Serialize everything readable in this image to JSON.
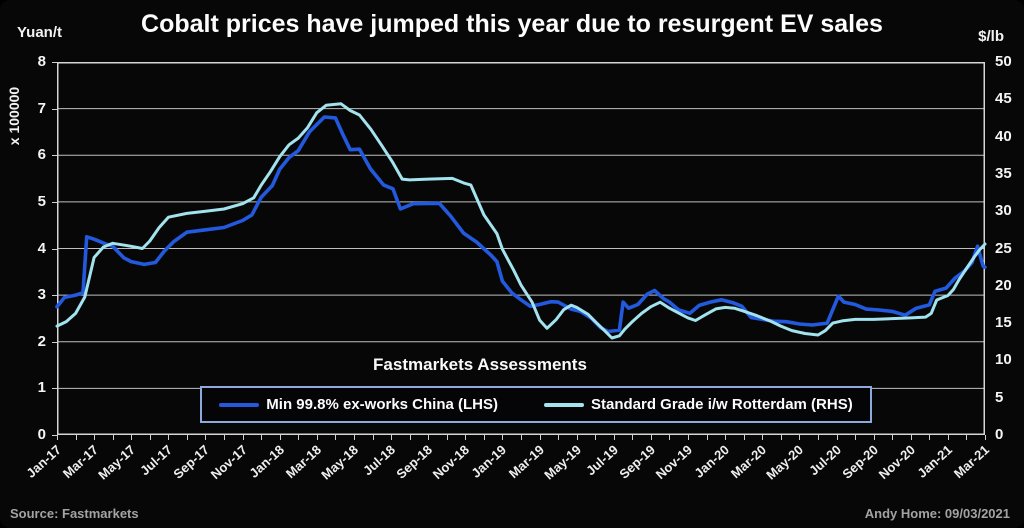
{
  "footer": {
    "source": "Source: Fastmarkets",
    "credit": "Andy Home: 09/03/2021"
  },
  "chart_data": {
    "type": "line",
    "title": "Cobalt prices have jumped this year due to resurgent EV sales",
    "annotation": "Fastmarkets Assessments",
    "grid": "horizontal",
    "grid_color": "#bfbfbf",
    "border_color": "#d6d6d6",
    "background_color": "#070707",
    "legend_position": "bottom-inside",
    "legend_border_color": "#8ea9db",
    "x_axis": {
      "months_span": 50,
      "label_every_n_months": 2,
      "tick_labels": [
        "Jan-17",
        "Mar-17",
        "May-17",
        "Jul-17",
        "Sep-17",
        "Nov-17",
        "Jan-18",
        "Mar-18",
        "May-18",
        "Jul-18",
        "Sep-18",
        "Nov-18",
        "Jan-19",
        "Mar-19",
        "May-19",
        "Jul-19",
        "Sep-19",
        "Nov-19",
        "Jan-20",
        "Mar-20",
        "May-20",
        "Jul-20",
        "Sep-20",
        "Nov-20",
        "Jan-21",
        "Mar-21"
      ]
    },
    "left_axis": {
      "unit": "Yuan/t",
      "multiplier": "x 100000",
      "min": 0,
      "max": 8,
      "step": 1,
      "tick_labels": [
        "8",
        "7",
        "6",
        "5",
        "4",
        "3",
        "2",
        "1",
        "0"
      ]
    },
    "right_axis": {
      "unit": "$/lb",
      "min": 0,
      "max": 50,
      "step": 5,
      "tick_labels": [
        "50",
        "45",
        "40",
        "35",
        "30",
        "25",
        "20",
        "15",
        "10",
        "5",
        "0"
      ]
    },
    "series": [
      {
        "name": "Min 99.8% ex-works China (LHS)",
        "axis": "left",
        "color": "#2259dd",
        "points": [
          [
            0,
            2.75
          ],
          [
            0.4,
            2.95
          ],
          [
            1,
            3.0
          ],
          [
            1.4,
            3.05
          ],
          [
            1.6,
            4.25
          ],
          [
            2,
            4.2
          ],
          [
            2.6,
            4.1
          ],
          [
            3,
            4.05
          ],
          [
            3.6,
            3.8
          ],
          [
            4,
            3.72
          ],
          [
            4.7,
            3.66
          ],
          [
            5.3,
            3.7
          ],
          [
            5.8,
            3.95
          ],
          [
            6.3,
            4.15
          ],
          [
            7,
            4.35
          ],
          [
            8,
            4.4
          ],
          [
            9,
            4.45
          ],
          [
            10,
            4.6
          ],
          [
            10.5,
            4.72
          ],
          [
            11,
            5.1
          ],
          [
            11.6,
            5.35
          ],
          [
            12,
            5.7
          ],
          [
            12.5,
            5.95
          ],
          [
            13,
            6.1
          ],
          [
            13.6,
            6.5
          ],
          [
            14.1,
            6.7
          ],
          [
            14.4,
            6.82
          ],
          [
            15,
            6.8
          ],
          [
            15.4,
            6.45
          ],
          [
            15.8,
            6.12
          ],
          [
            16.3,
            6.13
          ],
          [
            16.9,
            5.7
          ],
          [
            17.6,
            5.36
          ],
          [
            18.1,
            5.28
          ],
          [
            18.5,
            4.85
          ],
          [
            19.2,
            4.96
          ],
          [
            20.6,
            4.97
          ],
          [
            21.2,
            4.7
          ],
          [
            21.9,
            4.33
          ],
          [
            22.6,
            4.14
          ],
          [
            23.4,
            3.85
          ],
          [
            23.7,
            3.72
          ],
          [
            24,
            3.3
          ],
          [
            24.5,
            3.05
          ],
          [
            25,
            2.9
          ],
          [
            25.5,
            2.76
          ],
          [
            26,
            2.8
          ],
          [
            26.6,
            2.86
          ],
          [
            27,
            2.85
          ],
          [
            27.7,
            2.7
          ],
          [
            28.2,
            2.65
          ],
          [
            28.8,
            2.5
          ],
          [
            29.3,
            2.3
          ],
          [
            29.7,
            2.22
          ],
          [
            30.3,
            2.25
          ],
          [
            30.5,
            2.85
          ],
          [
            30.8,
            2.72
          ],
          [
            31.3,
            2.8
          ],
          [
            31.8,
            3.02
          ],
          [
            32.2,
            3.1
          ],
          [
            32.7,
            2.92
          ],
          [
            33,
            2.85
          ],
          [
            33.5,
            2.68
          ],
          [
            34.1,
            2.61
          ],
          [
            34.6,
            2.78
          ],
          [
            35.2,
            2.85
          ],
          [
            35.8,
            2.9
          ],
          [
            36.4,
            2.84
          ],
          [
            36.9,
            2.76
          ],
          [
            37.4,
            2.52
          ],
          [
            38,
            2.48
          ],
          [
            38.6,
            2.44
          ],
          [
            39.3,
            2.43
          ],
          [
            40,
            2.38
          ],
          [
            40.7,
            2.36
          ],
          [
            41.5,
            2.4
          ],
          [
            42.1,
            2.98
          ],
          [
            42.4,
            2.85
          ],
          [
            43,
            2.8
          ],
          [
            43.6,
            2.7
          ],
          [
            44.3,
            2.68
          ],
          [
            45,
            2.65
          ],
          [
            45.7,
            2.57
          ],
          [
            46.3,
            2.72
          ],
          [
            47,
            2.79
          ],
          [
            47.3,
            3.08
          ],
          [
            47.9,
            3.15
          ],
          [
            48.4,
            3.37
          ],
          [
            48.9,
            3.52
          ],
          [
            49.3,
            3.7
          ],
          [
            49.6,
            4.05
          ],
          [
            49.9,
            3.62
          ],
          [
            50,
            3.6
          ]
        ]
      },
      {
        "name": "Standard Grade i/w Rotterdam (RHS)",
        "axis": "right",
        "color": "#a2e3ee",
        "points": [
          [
            0,
            14.6
          ],
          [
            0.5,
            15.2
          ],
          [
            1,
            16.3
          ],
          [
            1.5,
            18.5
          ],
          [
            2,
            23.8
          ],
          [
            2.5,
            25.2
          ],
          [
            3,
            25.7
          ],
          [
            4,
            25.3
          ],
          [
            4.6,
            25.0
          ],
          [
            5,
            26.0
          ],
          [
            5.5,
            27.8
          ],
          [
            6,
            29.2
          ],
          [
            7,
            29.7
          ],
          [
            8,
            30.0
          ],
          [
            9,
            30.3
          ],
          [
            10,
            31.0
          ],
          [
            10.6,
            31.8
          ],
          [
            11,
            33.5
          ],
          [
            11.5,
            35.3
          ],
          [
            12,
            37.3
          ],
          [
            12.5,
            38.9
          ],
          [
            13,
            39.8
          ],
          [
            13.5,
            41.2
          ],
          [
            14,
            43.2
          ],
          [
            14.5,
            44.2
          ],
          [
            15.3,
            44.4
          ],
          [
            15.8,
            43.5
          ],
          [
            16.3,
            42.9
          ],
          [
            16.9,
            41.0
          ],
          [
            17.5,
            38.8
          ],
          [
            18.1,
            36.5
          ],
          [
            18.6,
            34.3
          ],
          [
            19,
            34.2
          ],
          [
            20,
            34.3
          ],
          [
            21.3,
            34.4
          ],
          [
            21.9,
            33.8
          ],
          [
            22.3,
            33.5
          ],
          [
            23,
            29.5
          ],
          [
            23.7,
            27.0
          ],
          [
            24,
            24.9
          ],
          [
            24.6,
            22.1
          ],
          [
            25,
            20.1
          ],
          [
            25.6,
            17.8
          ],
          [
            26,
            15.4
          ],
          [
            26.4,
            14.3
          ],
          [
            26.9,
            15.5
          ],
          [
            27.3,
            16.8
          ],
          [
            27.7,
            17.4
          ],
          [
            28,
            17.1
          ],
          [
            28.6,
            16.2
          ],
          [
            29,
            15.2
          ],
          [
            29.5,
            14.0
          ],
          [
            29.9,
            13.0
          ],
          [
            30.3,
            13.3
          ],
          [
            30.6,
            14.2
          ],
          [
            31,
            15.2
          ],
          [
            31.5,
            16.3
          ],
          [
            32,
            17.2
          ],
          [
            32.5,
            17.8
          ],
          [
            33,
            17.0
          ],
          [
            33.6,
            16.2
          ],
          [
            34,
            15.7
          ],
          [
            34.4,
            15.35
          ],
          [
            35,
            16.2
          ],
          [
            35.5,
            16.9
          ],
          [
            36,
            17.1
          ],
          [
            36.5,
            17.0
          ],
          [
            37,
            16.6
          ],
          [
            37.7,
            16.0
          ],
          [
            38.5,
            15.2
          ],
          [
            39,
            14.6
          ],
          [
            39.6,
            14.0
          ],
          [
            40.3,
            13.6
          ],
          [
            41,
            13.4
          ],
          [
            41.4,
            14.0
          ],
          [
            41.8,
            15.0
          ],
          [
            42.3,
            15.3
          ],
          [
            43,
            15.5
          ],
          [
            44,
            15.5
          ],
          [
            45,
            15.6
          ],
          [
            46,
            15.7
          ],
          [
            46.8,
            15.8
          ],
          [
            47.1,
            16.3
          ],
          [
            47.4,
            18.1
          ],
          [
            48,
            18.7
          ],
          [
            48.3,
            19.5
          ],
          [
            48.6,
            20.8
          ],
          [
            49,
            22.3
          ],
          [
            49.4,
            23.8
          ],
          [
            49.7,
            24.8
          ],
          [
            50,
            25.6
          ]
        ]
      }
    ]
  }
}
